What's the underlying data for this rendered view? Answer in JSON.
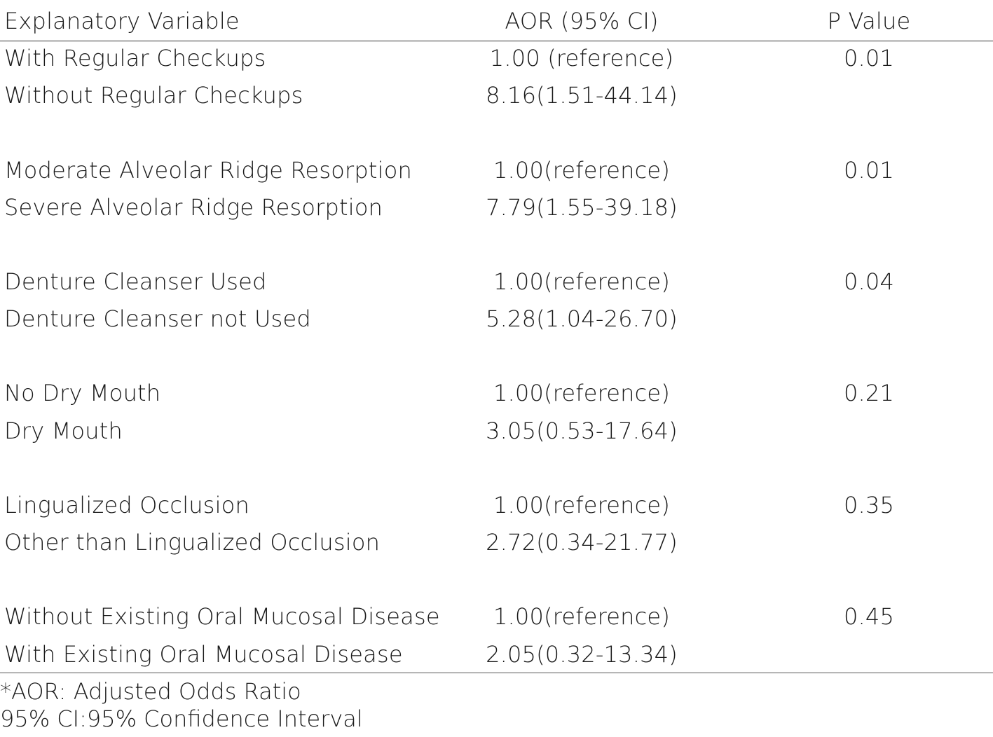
{
  "table": {
    "headers": {
      "variable": "Explanatory Variable",
      "aor": "AOR  (95% CI)",
      "p_value": "P Value"
    },
    "rows": [
      {
        "variable": "With Regular Checkups",
        "aor": "1.00  (reference)",
        "p": "0.01"
      },
      {
        "variable": "Without Regular Checkups",
        "aor": "8.16(1.51-44.14)",
        "p": ""
      },
      {
        "variable": "Moderate Alveolar Ridge Resorption",
        "aor": "1.00(reference)",
        "p": "0.01"
      },
      {
        "variable": "Severe Alveolar Ridge Resorption",
        "aor": "7.79(1.55-39.18)",
        "p": ""
      },
      {
        "variable": "Denture Cleanser Used",
        "aor": "1.00(reference)",
        "p": "0.04"
      },
      {
        "variable": "Denture Cleanser not Used",
        "aor": "5.28(1.04-26.70)",
        "p": ""
      },
      {
        "variable": "No Dry Mouth",
        "aor": "1.00(reference)",
        "p": "0.21"
      },
      {
        "variable": "Dry Mouth",
        "aor": "3.05(0.53-17.64)",
        "p": ""
      },
      {
        "variable": "Lingualized Occlusion",
        "aor": "1.00(reference)",
        "p": "0.35"
      },
      {
        "variable": "Other than Lingualized Occlusion",
        "aor": "2.72(0.34-21.77)",
        "p": ""
      },
      {
        "variable": "Without Existing Oral Mucosal Disease",
        "aor": "1.00(reference)",
        "p": "0.45"
      },
      {
        "variable": "With Existing Oral Mucosal Disease",
        "aor": "2.05(0.32-13.34)",
        "p": ""
      }
    ]
  },
  "footnotes": {
    "aor": "*AOR:  Adjusted Odds Ratio",
    "ci": "95% CI:95% Confidence Interval"
  }
}
